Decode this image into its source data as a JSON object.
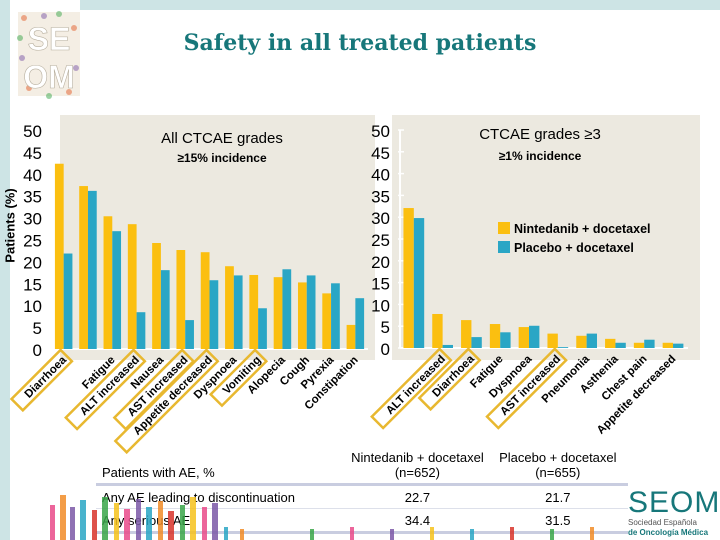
{
  "title": "Safety in all treated patients",
  "y_axis_label": "Patients (%)",
  "colors": {
    "nintedanib": "#fbbf10",
    "placebo": "#2aa6c5",
    "title": "#17777a",
    "panel": "#ece9e0",
    "highlight": "#e8b830"
  },
  "legend": [
    {
      "name": "Nintedanib + docetaxel",
      "color": "#fbbf10"
    },
    {
      "name": "Placebo + docetaxel",
      "color": "#2aa6c5"
    }
  ],
  "chart_data": [
    {
      "type": "bar",
      "title": "All CTCAE grades",
      "subtitle": "≥15% incidence",
      "ylabel": "Patients (%)",
      "ylim": [
        0,
        50
      ],
      "yticks": [
        0,
        5,
        10,
        15,
        20,
        25,
        30,
        35,
        40,
        45,
        50
      ],
      "categories": [
        "Diarrhoea",
        "",
        "Fatigue",
        "ALT increased",
        "Nausea",
        "AST increased",
        "Appetite decreased",
        "Dyspnoea",
        "Vomiting",
        "Alopecia",
        "Cough",
        "Pyrexia",
        "Constipation"
      ],
      "highlighted": [
        "Diarrhoea",
        "ALT increased",
        "AST increased",
        "Appetite decreased",
        "Vomiting"
      ],
      "series": [
        {
          "name": "Nintedanib + docetaxel",
          "values": [
            42.3,
            37.2,
            30.3,
            28.5,
            24.2,
            22.6,
            22.1,
            18.9,
            16.9,
            16.4,
            15.2,
            12.7,
            5.5
          ]
        },
        {
          "name": "Placebo + docetaxel",
          "values": [
            21.8,
            36.1,
            26.9,
            8.4,
            18.0,
            6.6,
            15.7,
            16.8,
            9.3,
            18.2,
            16.8,
            15.0,
            11.6
          ]
        }
      ]
    },
    {
      "type": "bar",
      "title": "CTCAE grades ≥3",
      "subtitle": "≥1% incidence",
      "ylim": [
        0,
        50
      ],
      "yticks": [
        0,
        5,
        10,
        15,
        20,
        25,
        30,
        35,
        40,
        45,
        50
      ],
      "legend_position": "top-right",
      "categories": [
        "",
        "ALT increased",
        "Diarrhoea",
        "Fatigue",
        "Dyspnoea",
        "AST increased",
        "Pneumonia",
        "Asthenia",
        "Chest pain",
        "Appetite decreased"
      ],
      "highlighted": [
        "ALT increased",
        "Diarrhoea",
        "AST increased"
      ],
      "series": [
        {
          "name": "Nintedanib + docetaxel",
          "values": [
            32.1,
            7.8,
            6.4,
            5.5,
            4.8,
            3.3,
            2.8,
            2.1,
            1.2,
            1.2
          ]
        },
        {
          "name": "Placebo + docetaxel",
          "values": [
            29.8,
            0.7,
            2.5,
            3.6,
            5.1,
            0.2,
            3.3,
            1.2,
            1.9,
            1.0
          ]
        }
      ]
    }
  ],
  "table": {
    "headers": [
      "Patients with AE, %",
      "Nintedanib + docetaxel (n=652)",
      "Placebo + docetaxel (n=655)"
    ],
    "rows": [
      [
        "Any AE leading to discontinuation",
        "22.7",
        "21.7"
      ],
      [
        "Any serious AE",
        "34.4",
        "31.5"
      ]
    ]
  },
  "footer_logo": {
    "name": "SEOM",
    "line1": "Sociedad Española",
    "line2": "de Oncología Médica"
  },
  "header_logo": {
    "line1": "SE",
    "line2": "OM"
  }
}
